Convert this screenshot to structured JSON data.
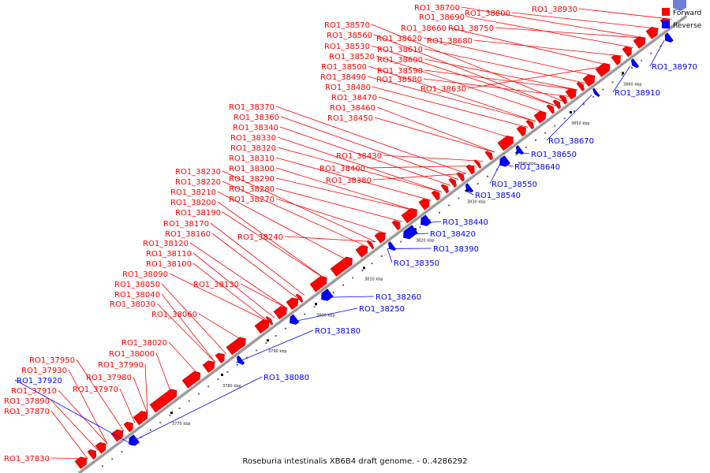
{
  "caption": "Roseburia intestinalis XB6B4 draft genome. - 0..4286292",
  "legend": [
    {
      "label": "Forward",
      "color": "#ff0000"
    },
    {
      "label": "Reverse",
      "color": "#0000ff"
    }
  ],
  "colors": {
    "forward": "#ff0000",
    "reverse": "#0000ff",
    "axis": "#999999"
  },
  "ticks": [
    "3770 kbp",
    "3780 kbp",
    "3790 kbp",
    "3800 kbp",
    "3810 kbp",
    "3820 kbp",
    "3830 kbp",
    "3840 kbp",
    "3850 kbp",
    "3860 kbp"
  ],
  "forward_labels": [
    "RO1_37830",
    "RO1_37870",
    "RO1_37890",
    "RO1_37910",
    "RO1_37930",
    "RO1_37950",
    "RO1_37970",
    "RO1_37980",
    "RO1_37990",
    "RO1_38000",
    "RO1_38020",
    "RO1_38030",
    "RO1_38040",
    "RO1_38050",
    "RO1_38060",
    "RO1_38090",
    "RO1_38100",
    "RO1_38110",
    "RO1_38120",
    "RO1_38130",
    "RO1_38160",
    "RO1_38170",
    "RO1_38190",
    "RO1_38200",
    "RO1_38210",
    "RO1_38220",
    "RO1_38230",
    "RO1_38240",
    "RO1_38270",
    "RO1_38280",
    "RO1_38290",
    "RO1_38300",
    "RO1_38310",
    "RO1_38320",
    "RO1_38330",
    "RO1_38340",
    "RO1_38360",
    "RO1_38370",
    "RO1_38380",
    "RO1_38400",
    "RO1_38430",
    "RO1_38450",
    "RO1_38460",
    "RO1_38470",
    "RO1_38480",
    "RO1_38490",
    "RO1_38500",
    "RO1_38520",
    "RO1_38530",
    "RO1_38560",
    "RO1_38570",
    "RO1_38580",
    "RO1_38590",
    "RO1_38600",
    "RO1_38610",
    "RO1_38620",
    "RO1_38630",
    "RO1_38660",
    "RO1_38680",
    "RO1_38690",
    "RO1_38700",
    "RO1_38750",
    "RO1_38800",
    "RO1_38930"
  ],
  "reverse_labels": [
    "RO1_37920",
    "RO1_38080",
    "RO1_38180",
    "RO1_38250",
    "RO1_38260",
    "RO1_38350",
    "RO1_38390",
    "RO1_38420",
    "RO1_38440",
    "RO1_38540",
    "RO1_38550",
    "RO1_38640",
    "RO1_38650",
    "RO1_38670",
    "RO1_38910",
    "RO1_38970"
  ]
}
